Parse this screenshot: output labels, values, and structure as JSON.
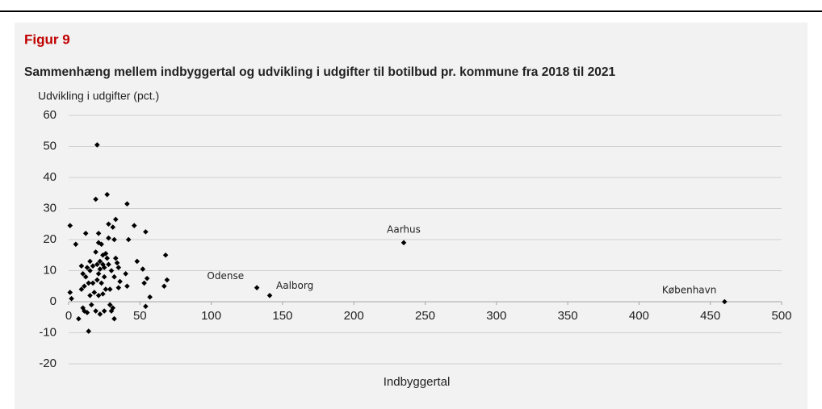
{
  "chart_data": {
    "type": "scatter",
    "figure_label": "Figur 9",
    "title": "Sammenhæng mellem indbyggertal og udvikling i udgifter til botilbud pr. kommune fra 2018 til 2021",
    "y_label": "Udvikling i udgifter (pct.)",
    "x_label": "Indbyggertal",
    "color": "#000000",
    "grid": true,
    "xlim": [
      0,
      500
    ],
    "xticks": [
      0,
      50,
      100,
      150,
      200,
      250,
      300,
      350,
      400,
      450,
      500
    ],
    "ylim": [
      -20,
      60
    ],
    "yticks": [
      -20,
      -10,
      0,
      10,
      20,
      30,
      40,
      50,
      60
    ],
    "x": [
      1,
      1,
      2,
      5,
      7,
      9,
      9,
      10,
      10,
      11,
      11,
      12,
      12,
      13,
      13,
      14,
      14,
      15,
      15,
      15,
      16,
      17,
      17,
      18,
      19,
      19,
      19,
      20,
      20,
      20,
      21,
      21,
      21,
      21,
      22,
      22,
      22,
      23,
      23,
      24,
      24,
      24,
      25,
      25,
      25,
      26,
      26,
      27,
      27,
      28,
      28,
      28,
      29,
      29,
      30,
      30,
      31,
      31,
      32,
      32,
      32,
      33,
      33,
      34,
      35,
      35,
      36,
      40,
      41,
      41,
      42,
      46,
      48,
      52,
      53,
      54,
      54,
      55,
      57,
      67,
      68,
      69,
      132,
      141,
      235,
      460
    ],
    "values": [
      24.5,
      3,
      1,
      18.5,
      -5.5,
      11.5,
      4,
      9,
      -2,
      5,
      -3,
      22,
      8,
      -3.5,
      11,
      -9.5,
      6,
      2,
      13,
      10,
      -1,
      6,
      11.5,
      3,
      16,
      -3,
      33,
      50.5,
      12,
      7,
      19,
      22,
      2,
      9,
      10.5,
      -4,
      13,
      6,
      18.5,
      15,
      12,
      2.5,
      -3,
      8,
      11,
      15.5,
      4,
      34.5,
      14,
      12,
      20.5,
      25,
      4,
      -1,
      10,
      -3,
      -2,
      24,
      8,
      20,
      -5.5,
      26.5,
      14,
      12.5,
      4.5,
      11,
      6.5,
      9,
      5,
      31.5,
      20,
      24.5,
      13,
      10.5,
      6,
      22.5,
      -1.5,
      7.5,
      1.5,
      5,
      15,
      7,
      4.5,
      2,
      19,
      0
    ],
    "annotations": [
      {
        "text": "Odense",
        "x": 132,
        "y": 4.5
      },
      {
        "text": "Aalborg",
        "x": 141,
        "y": 2
      },
      {
        "text": "Aarhus",
        "x": 235,
        "y": 19
      },
      {
        "text": "København",
        "x": 460,
        "y": 0
      }
    ]
  }
}
